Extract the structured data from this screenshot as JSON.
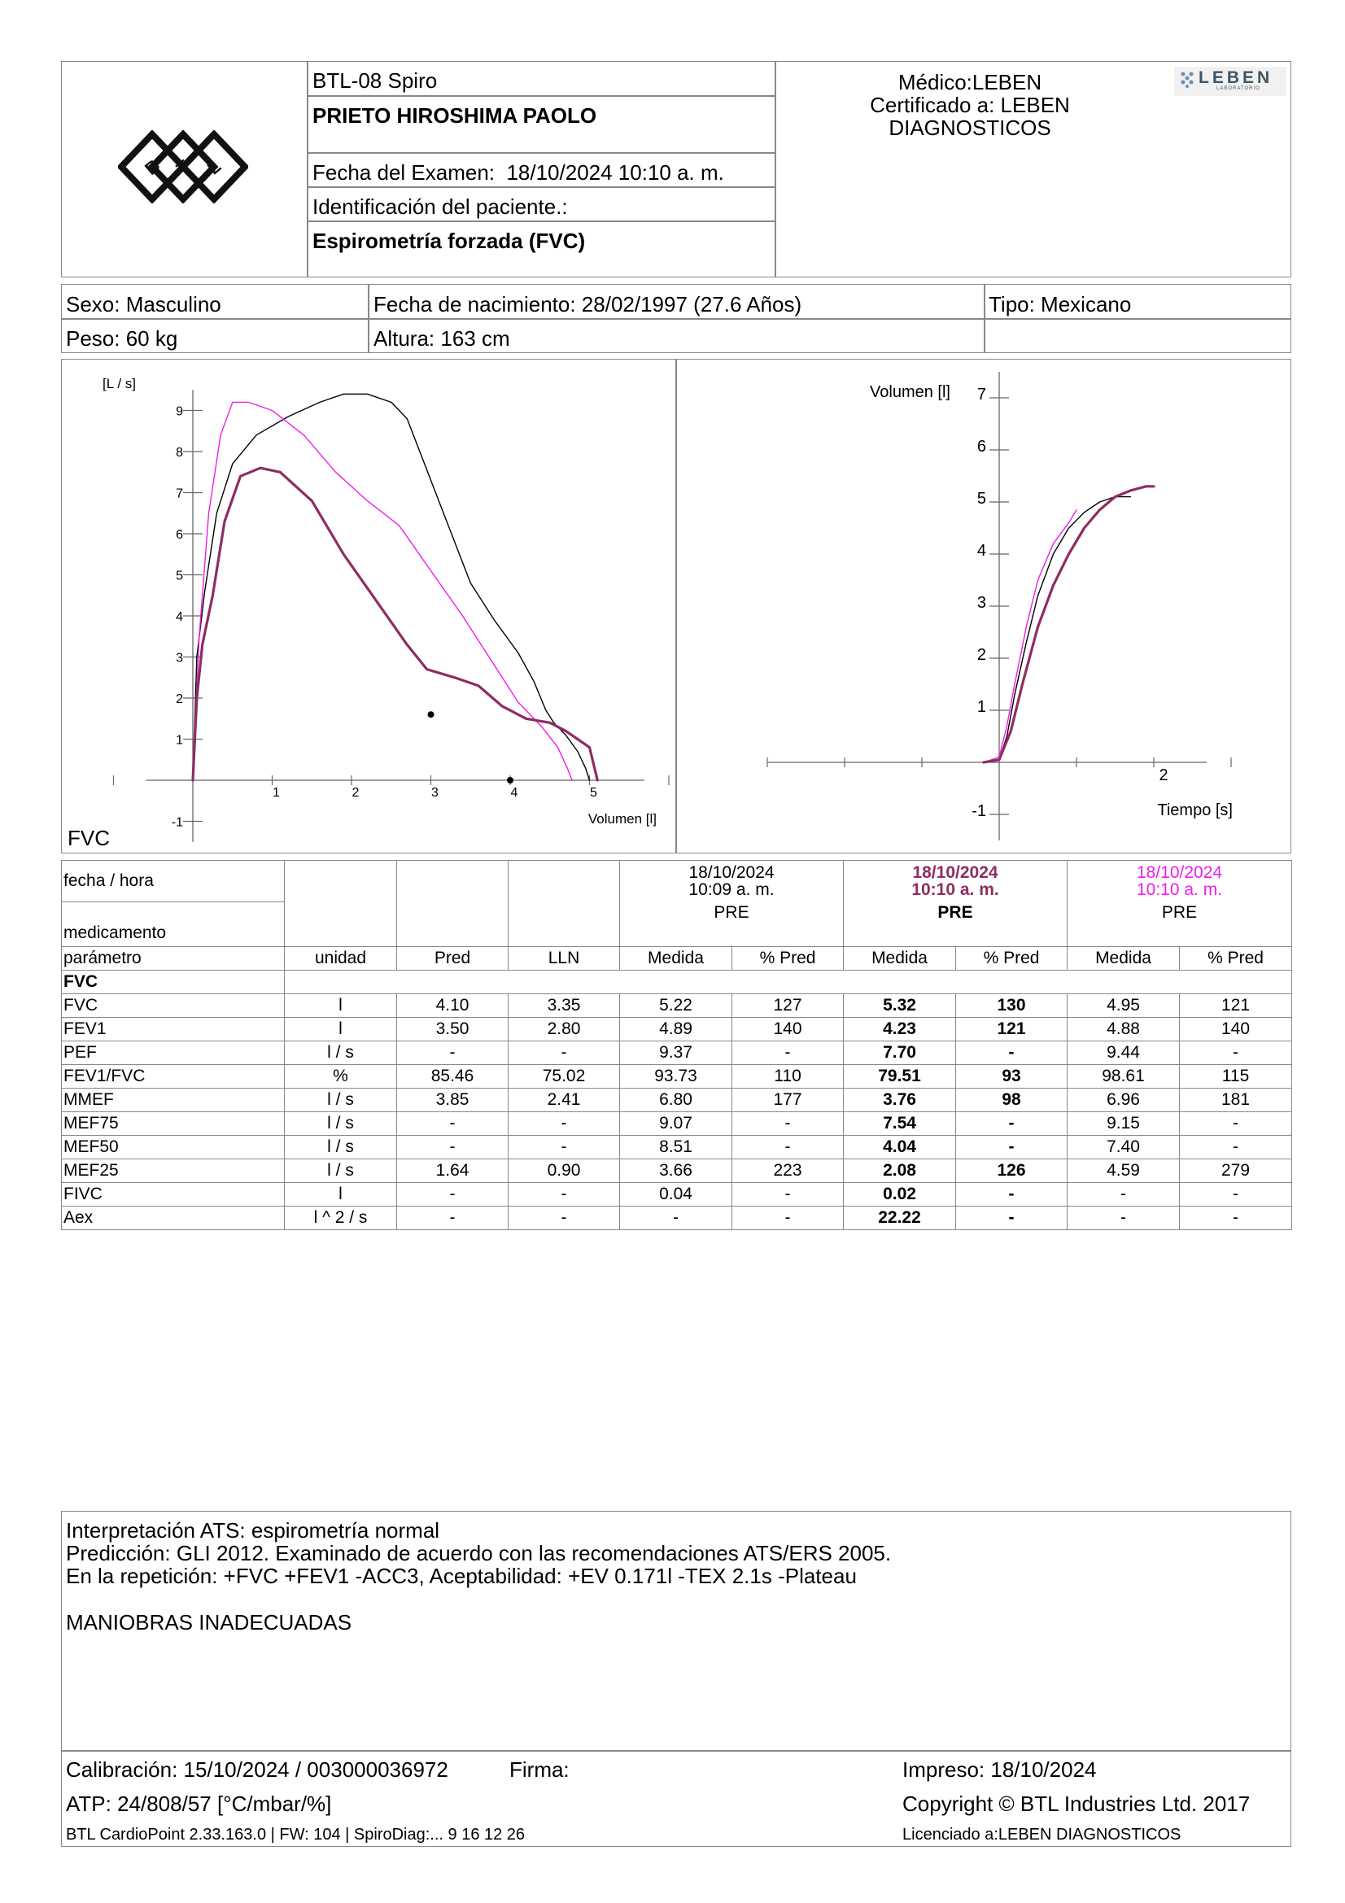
{
  "header": {
    "device": "BTL-08 Spiro",
    "patient_name": "PRIETO HIROSHIMA PAOLO",
    "exam_date": "Fecha del Examen:  18/10/2024 10:10 a. m.",
    "patient_id": "Identificación del paciente.:",
    "test_type": "Espirometría forzada (FVC)",
    "doctor": "Médico:LEBEN",
    "certified": "Certificado a: LEBEN",
    "certified2": "DIAGNOSTICOS",
    "lab_logo": "LEBEN",
    "lab_logo_sub": "LABORATORIO",
    "btl_logo": "BTL"
  },
  "patient": {
    "sex": "Sexo: Masculino",
    "birth": "Fecha de nacimiento: 28/02/1997 (27.6 Años)",
    "type": "Tipo: Mexicano",
    "weight": "Peso: 60 kg",
    "height": "Altura: 163 cm"
  },
  "charts_text": {
    "section_label": "FVC"
  },
  "chart_data": [
    {
      "type": "line",
      "ylabel": "[L / s]",
      "xlabel": "Volumen [l]",
      "xlim": [
        -1,
        6
      ],
      "ylim": [
        -1.5,
        9.5
      ],
      "xticks": [
        1,
        2,
        3,
        4,
        5
      ],
      "yticks": [
        -1,
        1,
        2,
        3,
        4,
        5,
        6,
        7,
        8,
        9
      ],
      "series": [
        {
          "color": "#000000",
          "width": 1.4,
          "points": [
            [
              0,
              0
            ],
            [
              0.05,
              3.0
            ],
            [
              0.15,
              4.6
            ],
            [
              0.3,
              6.5
            ],
            [
              0.5,
              7.7
            ],
            [
              0.8,
              8.4
            ],
            [
              1.2,
              8.85
            ],
            [
              1.6,
              9.2
            ],
            [
              1.9,
              9.4
            ],
            [
              2.2,
              9.4
            ],
            [
              2.5,
              9.2
            ],
            [
              2.7,
              8.8
            ],
            [
              2.9,
              7.8
            ],
            [
              3.2,
              6.3
            ],
            [
              3.5,
              4.8
            ],
            [
              3.8,
              3.9
            ],
            [
              4.1,
              3.1
            ],
            [
              4.3,
              2.4
            ],
            [
              4.45,
              1.7
            ],
            [
              4.55,
              1.4
            ],
            [
              4.7,
              1.1
            ],
            [
              4.85,
              0.7
            ],
            [
              4.95,
              0.3
            ],
            [
              5.0,
              0
            ]
          ]
        },
        {
          "color": "#ee1de9",
          "width": 1.4,
          "points": [
            [
              0,
              0
            ],
            [
              0.08,
              3.5
            ],
            [
              0.2,
              6.5
            ],
            [
              0.35,
              8.4
            ],
            [
              0.5,
              9.2
            ],
            [
              0.7,
              9.2
            ],
            [
              1.0,
              9.0
            ],
            [
              1.4,
              8.4
            ],
            [
              1.8,
              7.5
            ],
            [
              2.2,
              6.8
            ],
            [
              2.6,
              6.2
            ],
            [
              3.0,
              5.1
            ],
            [
              3.4,
              4.0
            ],
            [
              3.8,
              2.8
            ],
            [
              4.1,
              1.9
            ],
            [
              4.4,
              1.3
            ],
            [
              4.6,
              0.8
            ],
            [
              4.72,
              0.3
            ],
            [
              4.78,
              0
            ]
          ]
        },
        {
          "color": "#8e2d62",
          "width": 3.2,
          "points": [
            [
              0,
              0
            ],
            [
              0.05,
              2.0
            ],
            [
              0.12,
              3.3
            ],
            [
              0.25,
              4.5
            ],
            [
              0.4,
              6.3
            ],
            [
              0.6,
              7.4
            ],
            [
              0.85,
              7.6
            ],
            [
              1.1,
              7.5
            ],
            [
              1.5,
              6.8
            ],
            [
              1.9,
              5.5
            ],
            [
              2.3,
              4.4
            ],
            [
              2.7,
              3.3
            ],
            [
              2.95,
              2.7
            ],
            [
              3.3,
              2.5
            ],
            [
              3.6,
              2.3
            ],
            [
              3.9,
              1.8
            ],
            [
              4.2,
              1.5
            ],
            [
              4.5,
              1.4
            ],
            [
              4.7,
              1.2
            ],
            [
              4.85,
              1.0
            ],
            [
              5.0,
              0.8
            ],
            [
              5.05,
              0.4
            ],
            [
              5.1,
              0
            ]
          ]
        }
      ],
      "markers": [
        [
          3.0,
          1.6
        ],
        [
          4.0,
          0
        ]
      ]
    },
    {
      "type": "line",
      "ylabel": "Volumen [l]",
      "xlabel": "Tiempo [s]",
      "xlim": [
        -3,
        3
      ],
      "ylim": [
        -1.5,
        7.5
      ],
      "xticks": [
        2
      ],
      "yticks": [
        -1,
        1,
        2,
        3,
        4,
        5,
        6,
        7
      ],
      "series": [
        {
          "color": "#000000",
          "width": 1.4,
          "points": [
            [
              -0.2,
              0
            ],
            [
              0,
              0.05
            ],
            [
              0.1,
              0.5
            ],
            [
              0.2,
              1.3
            ],
            [
              0.35,
              2.3
            ],
            [
              0.5,
              3.2
            ],
            [
              0.7,
              4.0
            ],
            [
              0.9,
              4.5
            ],
            [
              1.1,
              4.8
            ],
            [
              1.3,
              5.0
            ],
            [
              1.5,
              5.1
            ],
            [
              1.7,
              5.1
            ]
          ]
        },
        {
          "color": "#ee1de9",
          "width": 1.4,
          "points": [
            [
              -0.2,
              0
            ],
            [
              0,
              0.1
            ],
            [
              0.1,
              0.7
            ],
            [
              0.2,
              1.5
            ],
            [
              0.35,
              2.6
            ],
            [
              0.5,
              3.5
            ],
            [
              0.7,
              4.2
            ],
            [
              0.9,
              4.6
            ],
            [
              1.0,
              4.85
            ]
          ]
        },
        {
          "color": "#8e2d62",
          "width": 3.2,
          "points": [
            [
              -0.2,
              0
            ],
            [
              0,
              0.05
            ],
            [
              0.15,
              0.6
            ],
            [
              0.3,
              1.5
            ],
            [
              0.5,
              2.6
            ],
            [
              0.7,
              3.4
            ],
            [
              0.9,
              4.0
            ],
            [
              1.1,
              4.5
            ],
            [
              1.3,
              4.85
            ],
            [
              1.5,
              5.1
            ],
            [
              1.7,
              5.22
            ],
            [
              1.9,
              5.3
            ],
            [
              2.0,
              5.3
            ]
          ]
        }
      ]
    }
  ],
  "table": {
    "row_fecha": "fecha / hora",
    "row_med": "medicamento",
    "trial1": {
      "date": "18/10/2024",
      "time": "10:09 a. m.",
      "med": "PRE"
    },
    "trial2": {
      "date": "18/10/2024",
      "time": "10:10 a. m.",
      "med": "PRE"
    },
    "trial3": {
      "date": "18/10/2024",
      "time": "10:10 a. m.",
      "med": "PRE"
    },
    "headers": [
      "parámetro",
      "unidad",
      "Pred",
      "LLN",
      "Medida",
      "% Pred",
      "Medida",
      "% Pred",
      "Medida",
      "% Pred"
    ],
    "group": "FVC",
    "rows": [
      [
        "FVC",
        "l",
        "4.10",
        "3.35",
        "5.22",
        "127",
        "5.32",
        "130",
        "4.95",
        "121"
      ],
      [
        "FEV1",
        "l",
        "3.50",
        "2.80",
        "4.89",
        "140",
        "4.23",
        "121",
        "4.88",
        "140"
      ],
      [
        "PEF",
        "l / s",
        "-",
        "-",
        "9.37",
        "-",
        "7.70",
        "-",
        "9.44",
        "-"
      ],
      [
        "FEV1/FVC",
        "%",
        "85.46",
        "75.02",
        "93.73",
        "110",
        "79.51",
        "93",
        "98.61",
        "115"
      ],
      [
        "MMEF",
        "l / s",
        "3.85",
        "2.41",
        "6.80",
        "177",
        "3.76",
        "98",
        "6.96",
        "181"
      ],
      [
        "MEF75",
        "l / s",
        "-",
        "-",
        "9.07",
        "-",
        "7.54",
        "-",
        "9.15",
        "-"
      ],
      [
        "MEF50",
        "l / s",
        "-",
        "-",
        "8.51",
        "-",
        "4.04",
        "-",
        "7.40",
        "-"
      ],
      [
        "MEF25",
        "l / s",
        "1.64",
        "0.90",
        "3.66",
        "223",
        "2.08",
        "126",
        "4.59",
        "279"
      ],
      [
        "FIVC",
        "l",
        "-",
        "-",
        "0.04",
        "-",
        "0.02",
        "-",
        "-",
        "-"
      ],
      [
        "Aex",
        "l ^ 2 / s",
        "-",
        "-",
        "-",
        "-",
        "22.22",
        "-",
        "-",
        "-"
      ]
    ]
  },
  "interpretation": {
    "line1": "Interpretación ATS: espirometría normal",
    "line2": "Predicción: GLI 2012. Examinado de acuerdo con las recomendaciones ATS/ERS 2005.",
    "line3": "En la repetición: +FVC +FEV1 -ACC3, Aceptabilidad: +EV 0.171l -TEX 2.1s -Plateau",
    "line4": "MANIOBRAS INADECUADAS"
  },
  "footer": {
    "calibration": "Calibración: 15/10/2024 / 003000036972",
    "signature": "Firma:",
    "printed": "Impreso: 18/10/2024",
    "atp": "ATP: 24/808/57 [°C/mbar/%]",
    "copyright": "Copyright © BTL Industries Ltd. 2017",
    "software": "BTL CardioPoint 2.33.163.0 | FW: 104 | SpiroDiag:... 9 16 12 26",
    "licensed": "Licenciado a:LEBEN DIAGNOSTICOS"
  }
}
